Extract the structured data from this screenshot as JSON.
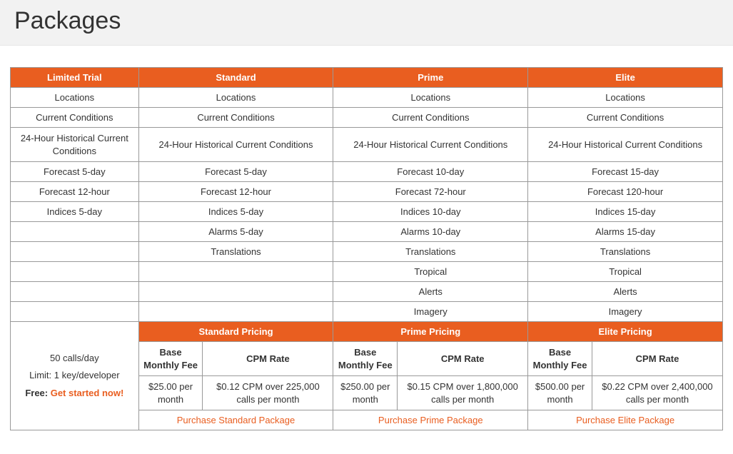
{
  "page": {
    "title": "Packages"
  },
  "tiers": {
    "trial": {
      "header": "Limited Trial"
    },
    "standard": {
      "header": "Standard",
      "pricing_header": "Standard Pricing"
    },
    "prime": {
      "header": "Prime",
      "pricing_header": "Prime Pricing"
    },
    "elite": {
      "header": "Elite",
      "pricing_header": "Elite Pricing"
    }
  },
  "features": {
    "r0": {
      "trial": "Locations",
      "standard": "Locations",
      "prime": "Locations",
      "elite": "Locations"
    },
    "r1": {
      "trial": "Current Conditions",
      "standard": "Current Conditions",
      "prime": "Current Conditions",
      "elite": "Current Conditions"
    },
    "r2": {
      "trial": "24-Hour Historical Current Conditions",
      "standard": "24-Hour Historical Current Conditions",
      "prime": "24-Hour Historical Current Conditions",
      "elite": "24-Hour Historical Current Conditions"
    },
    "r3": {
      "trial": "Forecast 5-day",
      "standard": "Forecast 5-day",
      "prime": "Forecast 10-day",
      "elite": "Forecast 15-day"
    },
    "r4": {
      "trial": "Forecast 12-hour",
      "standard": "Forecast 12-hour",
      "prime": "Forecast 72-hour",
      "elite": "Forecast 120-hour"
    },
    "r5": {
      "trial": "Indices 5-day",
      "standard": "Indices 5-day",
      "prime": "Indices 10-day",
      "elite": "Indices 15-day"
    },
    "r6": {
      "trial": "",
      "standard": "Alarms 5-day",
      "prime": "Alarms 10-day",
      "elite": "Alarms 15-day"
    },
    "r7": {
      "trial": "",
      "standard": "Translations",
      "prime": "Translations",
      "elite": "Translations"
    },
    "r8": {
      "trial": "",
      "standard": "",
      "prime": "Tropical",
      "elite": "Tropical"
    },
    "r9": {
      "trial": "",
      "standard": "",
      "prime": "Alerts",
      "elite": "Alerts"
    },
    "r10": {
      "trial": "",
      "standard": "",
      "prime": "Imagery",
      "elite": "Imagery"
    }
  },
  "pricing_labels": {
    "base_fee": "Base Monthly Fee",
    "cpm_rate": "CPM Rate"
  },
  "pricing": {
    "standard": {
      "base": "$25.00 per month",
      "cpm": "$0.12 CPM over 225,000 calls per month",
      "purchase": "Purchase Standard Package"
    },
    "prime": {
      "base": "$250.00 per month",
      "cpm": "$0.15 CPM over 1,800,000 calls per month",
      "purchase": "Purchase Prime Package"
    },
    "elite": {
      "base": "$500.00 per month",
      "cpm": "$0.22 CPM over 2,400,000 calls per month",
      "purchase": "Purchase Elite Package"
    }
  },
  "trial_details": {
    "line1": "50 calls/day",
    "line2": "Limit: 1 key/developer",
    "free_label": "Free: ",
    "cta": "Get started now!"
  },
  "colors": {
    "accent": "#e95e20",
    "border": "#999999",
    "header_bg": "#f2f2f2",
    "text": "#333333",
    "bg": "#ffffff"
  }
}
